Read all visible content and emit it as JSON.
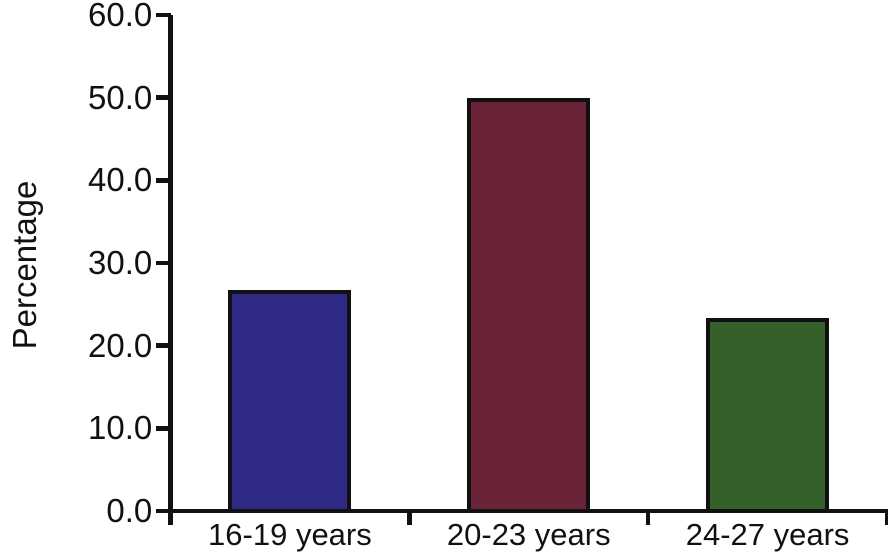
{
  "chart_data": {
    "type": "bar",
    "title": "",
    "xlabel": "",
    "ylabel": "Percentage",
    "categories": [
      "16-19 years",
      "20-23 years",
      "24-27 years"
    ],
    "values": [
      26.7,
      50.0,
      23.3
    ],
    "series": [
      {
        "name": "Percentage",
        "values": [
          26.7,
          50.0,
          23.3
        ]
      }
    ],
    "bar_colors": [
      "#2f2a85",
      "#6b2437",
      "#36602a"
    ],
    "bar_outline_color": "#111111",
    "ylim": [
      0,
      60
    ],
    "yticks": [
      0,
      10,
      20,
      30,
      40,
      50,
      60
    ],
    "ytick_labels": [
      "0.0",
      "10.0",
      "20.0",
      "30.0",
      "40.0",
      "50.0",
      "60.0"
    ],
    "grid": false,
    "legend_position": "none",
    "background_color": "#ffffff",
    "axis_color": "#111111",
    "text_color": "#111111"
  }
}
